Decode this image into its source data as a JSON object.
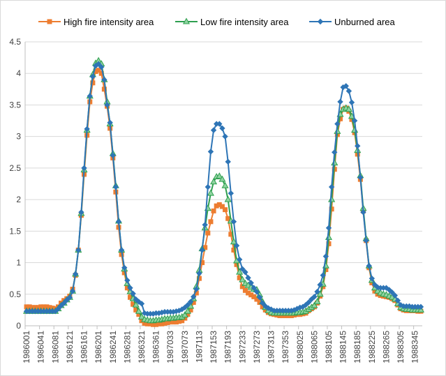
{
  "chart_data": {
    "type": "line",
    "title": "",
    "xlabel": "",
    "ylabel": "",
    "ylim": [
      0,
      4.5
    ],
    "y_ticks": [
      "0",
      "0.5",
      "1",
      "1.5",
      "2",
      "2.5",
      "3",
      "3.5",
      "4",
      "4.5"
    ],
    "grid": "horizontal",
    "legend_position": "top",
    "x_tick_labels": [
      "1986001",
      "1986041",
      "1986081",
      "1986121",
      "1986161",
      "1986201",
      "1986241",
      "1986281",
      "1986321",
      "1986361",
      "1987033",
      "1987073",
      "1987113",
      "1987153",
      "1987193",
      "1987233",
      "1987273",
      "1987313",
      "1987353",
      "1988025",
      "1988065",
      "1988105",
      "1988145",
      "1988185",
      "1988225",
      "1988265",
      "1988305",
      "1988345"
    ],
    "x_count": 138,
    "series": [
      {
        "name": "High fire intensity area",
        "color": "#ED7D31",
        "marker": "square",
        "values": [
          0.3,
          0.3,
          0.29,
          0.29,
          0.29,
          0.3,
          0.3,
          0.3,
          0.29,
          0.28,
          0.27,
          0.3,
          0.36,
          0.4,
          0.43,
          0.47,
          0.58,
          0.8,
          1.2,
          1.75,
          2.4,
          3.02,
          3.55,
          3.85,
          4.03,
          4.05,
          4.0,
          3.75,
          3.48,
          3.13,
          2.66,
          2.12,
          1.56,
          1.13,
          0.84,
          0.6,
          0.45,
          0.34,
          0.25,
          0.18,
          0.08,
          0.04,
          0.03,
          0.03,
          0.02,
          0.02,
          0.03,
          0.03,
          0.04,
          0.05,
          0.06,
          0.06,
          0.06,
          0.07,
          0.08,
          0.12,
          0.18,
          0.25,
          0.37,
          0.52,
          0.75,
          1.0,
          1.24,
          1.47,
          1.65,
          1.82,
          1.9,
          1.92,
          1.89,
          1.84,
          1.7,
          1.45,
          1.2,
          0.97,
          0.76,
          0.62,
          0.56,
          0.52,
          0.49,
          0.46,
          0.42,
          0.37,
          0.3,
          0.25,
          0.21,
          0.19,
          0.18,
          0.17,
          0.16,
          0.16,
          0.16,
          0.16,
          0.16,
          0.17,
          0.18,
          0.18,
          0.19,
          0.2,
          0.24,
          0.27,
          0.3,
          0.36,
          0.47,
          0.62,
          0.89,
          1.3,
          1.85,
          2.48,
          3.03,
          3.28,
          3.43,
          3.45,
          3.4,
          3.27,
          3.06,
          2.72,
          2.32,
          1.82,
          1.35,
          0.92,
          0.68,
          0.55,
          0.5,
          0.48,
          0.47,
          0.46,
          0.45,
          0.43,
          0.4,
          0.33,
          0.27,
          0.25,
          0.24,
          0.24,
          0.24,
          0.24,
          0.23,
          0.23
        ]
      },
      {
        "name": "Low fire intensity area",
        "color": "#2E9F4F",
        "marker": "triangle",
        "values": [
          0.23,
          0.23,
          0.23,
          0.23,
          0.23,
          0.23,
          0.23,
          0.23,
          0.23,
          0.23,
          0.23,
          0.27,
          0.32,
          0.36,
          0.41,
          0.45,
          0.55,
          0.82,
          1.2,
          1.78,
          2.47,
          3.1,
          3.64,
          3.98,
          4.16,
          4.2,
          4.15,
          3.9,
          3.55,
          3.2,
          2.73,
          2.22,
          1.66,
          1.2,
          0.9,
          0.67,
          0.54,
          0.43,
          0.33,
          0.23,
          0.14,
          0.1,
          0.09,
          0.08,
          0.08,
          0.09,
          0.09,
          0.1,
          0.11,
          0.11,
          0.12,
          0.12,
          0.13,
          0.13,
          0.14,
          0.17,
          0.23,
          0.31,
          0.43,
          0.62,
          0.88,
          1.22,
          1.55,
          1.86,
          2.1,
          2.28,
          2.36,
          2.37,
          2.32,
          2.22,
          2.0,
          1.66,
          1.33,
          1.03,
          0.85,
          0.73,
          0.67,
          0.64,
          0.61,
          0.58,
          0.57,
          0.49,
          0.38,
          0.29,
          0.24,
          0.21,
          0.2,
          0.2,
          0.2,
          0.2,
          0.2,
          0.2,
          0.2,
          0.2,
          0.21,
          0.21,
          0.22,
          0.23,
          0.26,
          0.29,
          0.32,
          0.38,
          0.5,
          0.66,
          0.95,
          1.4,
          2.0,
          2.58,
          3.08,
          3.35,
          3.43,
          3.45,
          3.43,
          3.32,
          3.1,
          2.78,
          2.38,
          1.86,
          1.38,
          0.95,
          0.72,
          0.6,
          0.55,
          0.52,
          0.5,
          0.49,
          0.47,
          0.45,
          0.42,
          0.35,
          0.29,
          0.27,
          0.26,
          0.26,
          0.25,
          0.25,
          0.25,
          0.25
        ]
      },
      {
        "name": "Unburned area",
        "color": "#2E75B6",
        "marker": "diamond",
        "values": [
          0.23,
          0.23,
          0.23,
          0.23,
          0.23,
          0.23,
          0.23,
          0.23,
          0.23,
          0.23,
          0.23,
          0.27,
          0.32,
          0.36,
          0.41,
          0.45,
          0.55,
          0.82,
          1.2,
          1.8,
          2.5,
          3.12,
          3.64,
          3.95,
          4.12,
          4.15,
          4.1,
          3.9,
          3.5,
          3.22,
          2.7,
          2.2,
          1.65,
          1.2,
          0.92,
          0.72,
          0.6,
          0.51,
          0.42,
          0.38,
          0.35,
          0.2,
          0.19,
          0.19,
          0.19,
          0.2,
          0.2,
          0.21,
          0.22,
          0.22,
          0.22,
          0.22,
          0.23,
          0.24,
          0.26,
          0.29,
          0.33,
          0.38,
          0.46,
          0.58,
          0.83,
          1.2,
          1.6,
          2.2,
          2.76,
          3.1,
          3.2,
          3.2,
          3.13,
          3.0,
          2.6,
          2.1,
          1.65,
          1.27,
          1.05,
          0.9,
          0.85,
          0.76,
          0.68,
          0.6,
          0.54,
          0.45,
          0.36,
          0.31,
          0.28,
          0.26,
          0.24,
          0.24,
          0.24,
          0.24,
          0.24,
          0.24,
          0.24,
          0.25,
          0.27,
          0.29,
          0.3,
          0.33,
          0.37,
          0.42,
          0.46,
          0.54,
          0.65,
          0.8,
          1.1,
          1.55,
          2.2,
          2.75,
          3.2,
          3.55,
          3.78,
          3.8,
          3.72,
          3.54,
          3.25,
          2.85,
          2.35,
          1.8,
          1.35,
          0.95,
          0.75,
          0.65,
          0.61,
          0.6,
          0.6,
          0.6,
          0.57,
          0.53,
          0.48,
          0.4,
          0.33,
          0.31,
          0.31,
          0.31,
          0.3,
          0.3,
          0.3,
          0.3
        ]
      }
    ]
  }
}
